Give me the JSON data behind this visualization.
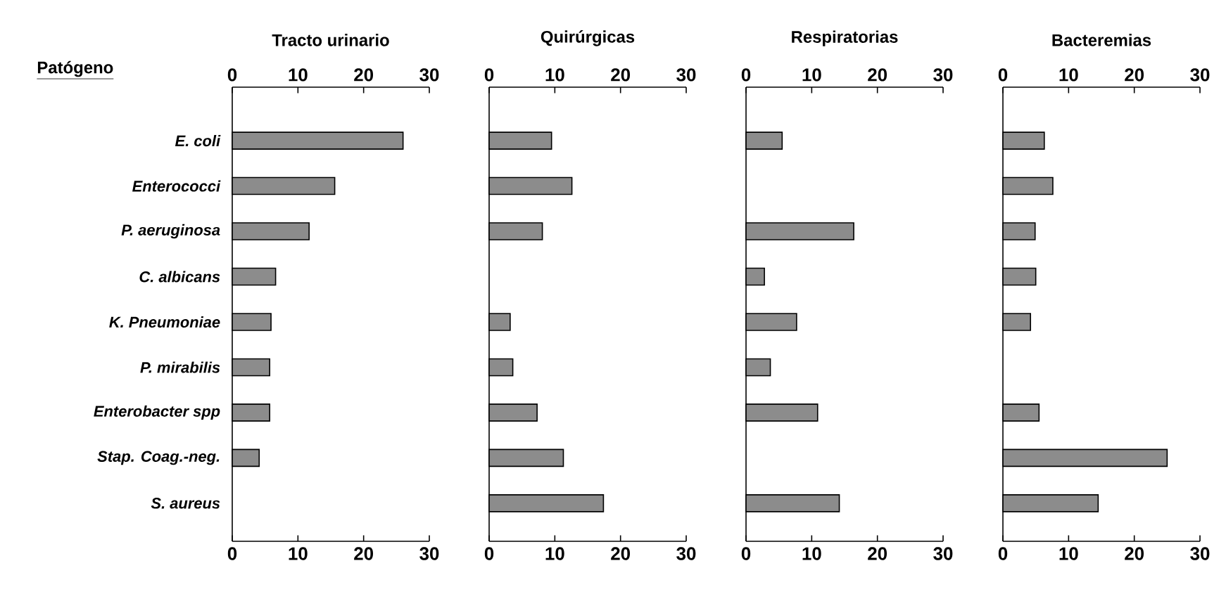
{
  "chart_data": [
    {
      "type": "bar",
      "orientation": "horizontal",
      "title": "Tracto urinario",
      "annotations": [
        "Patógeno"
      ],
      "categories": [
        "E. coli",
        "Enterococci",
        "P. aeruginosa",
        "C. albicans",
        "K. Pneumoniae",
        "P. mirabilis",
        "Enterobacter spp",
        "Stap. Coag.-neg.",
        "S. aureus"
      ],
      "values": [
        26,
        15.6,
        11.7,
        6.6,
        5.9,
        5.7,
        5.7,
        4.1,
        null
      ],
      "color": "#8c8c8c",
      "xlim": [
        0,
        30
      ],
      "xticks": [
        0,
        10,
        20,
        30
      ],
      "x2lim": [
        0,
        30
      ],
      "x2ticks": [
        0,
        10,
        20,
        30
      ]
    },
    {
      "type": "bar",
      "orientation": "horizontal",
      "title": "Quirúrgicas",
      "tick_labels": "x",
      "values": [
        9.5,
        12.6,
        8.1,
        null,
        3.2,
        3.6,
        7.3,
        11.3,
        17.4
      ],
      "color": "#8c8c8c",
      "xlim": [
        0,
        30
      ],
      "xticks": [
        0,
        10,
        20,
        30
      ],
      "x2lim": [
        0,
        30
      ],
      "x2ticks": [
        0,
        10,
        20,
        30
      ]
    },
    {
      "type": "bar",
      "orientation": "horizontal",
      "title": "Respiratorias",
      "tick_labels": "x",
      "values": [
        5.5,
        null,
        16.4,
        2.8,
        7.7,
        3.7,
        10.9,
        null,
        14.2
      ],
      "color": "#8c8c8c",
      "xlim": [
        0,
        30
      ],
      "xticks": [
        0,
        10,
        20,
        30
      ],
      "x2lim": [
        0,
        30
      ],
      "x2ticks": [
        0,
        10,
        20,
        30
      ]
    },
    {
      "type": "bar",
      "orientation": "horizontal",
      "title": "Bacteremias",
      "tick_labels": "x",
      "values": [
        6.3,
        7.6,
        4.9,
        5,
        4.2,
        null,
        5.5,
        25,
        14.5
      ],
      "color": "#8c8c8c",
      "xlim": [
        0,
        30
      ],
      "xticks": [
        0,
        10,
        20,
        30
      ],
      "x2lim": [
        0,
        30
      ],
      "x2ticks": [
        0,
        10,
        20,
        30
      ]
    }
  ]
}
